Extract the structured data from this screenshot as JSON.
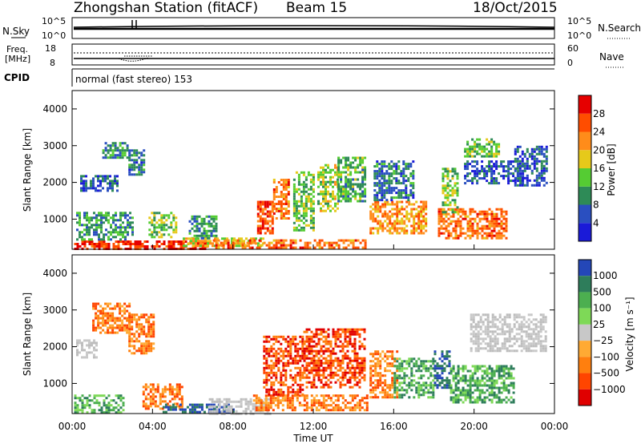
{
  "header": {
    "station": "Zhongshan Station (fitACF)",
    "beam": "Beam 15",
    "date": "18/Oct/2015"
  },
  "panels": {
    "nsky_label": "N.Sky",
    "nsearch_label": "N.Search",
    "noise_ticks": [
      "10^5",
      "10^0"
    ],
    "freq_label_line1": "Freq.",
    "freq_label_line2": "[MHz]",
    "freq_ticks": [
      "18",
      "8"
    ],
    "nave_label": "Nave",
    "nave_ticks": [
      "60",
      "0"
    ],
    "cpid_label": "CPID",
    "cpid_text": "normal (fast stereo) 153"
  },
  "colors": {
    "power": [
      "#1a1ad8",
      "#2a4fc0",
      "#2e8b57",
      "#55cc33",
      "#e6c91a",
      "#ff8c1a",
      "#ff4d00",
      "#e60000"
    ],
    "velocity": [
      "#2447b8",
      "#2e7d5b",
      "#4caf50",
      "#7ed957",
      "#c8c8c8",
      "#ffaa33",
      "#ff7f0e",
      "#ff4500",
      "#e00000"
    ],
    "ground_scatter": "#bdbdbd"
  },
  "chart_data": [
    {
      "type": "heatmap",
      "quantity": "Power",
      "ylabel": "Slant Range [km]",
      "xlabel": "Time UT",
      "x_ticks": [
        "00:00",
        "04:00",
        "08:00",
        "12:00",
        "16:00",
        "20:00",
        "00:00"
      ],
      "xlim_hours": [
        0,
        24
      ],
      "y_ticks": [
        1000,
        2000,
        3000,
        4000
      ],
      "ylim": [
        180,
        4500
      ],
      "colorbar_label": "Power [dB]",
      "colorbar_ticks": [
        4,
        8,
        12,
        16,
        20,
        24,
        28
      ],
      "colorbar_range": [
        0,
        32
      ],
      "regions": [
        {
          "t0": 0.1,
          "t1": 6.8,
          "r0": 200,
          "r1": 420,
          "level": 28
        },
        {
          "t0": 0.2,
          "t1": 3.0,
          "r0": 450,
          "r1": 1200,
          "level": 10
        },
        {
          "t0": 0.4,
          "t1": 2.2,
          "r0": 1800,
          "r1": 2200,
          "level": 6
        },
        {
          "t0": 1.5,
          "t1": 2.8,
          "r0": 2700,
          "r1": 3100,
          "level": 10
        },
        {
          "t0": 2.8,
          "t1": 3.6,
          "r0": 2200,
          "r1": 2900,
          "level": 8
        },
        {
          "t0": 3.8,
          "t1": 5.2,
          "r0": 500,
          "r1": 1200,
          "level": 14
        },
        {
          "t0": 5.8,
          "t1": 7.2,
          "r0": 450,
          "r1": 1100,
          "level": 10
        },
        {
          "t0": 5.5,
          "t1": 9.5,
          "r0": 300,
          "r1": 500,
          "level": 18
        },
        {
          "t0": 7.0,
          "t1": 14.6,
          "r0": 250,
          "r1": 450,
          "level": 24
        },
        {
          "t0": 9.2,
          "t1": 10.0,
          "r0": 600,
          "r1": 1500,
          "level": 26
        },
        {
          "t0": 10.0,
          "t1": 10.8,
          "r0": 1000,
          "r1": 2100,
          "level": 24
        },
        {
          "t0": 11.0,
          "t1": 12.0,
          "r0": 700,
          "r1": 2300,
          "level": 14
        },
        {
          "t0": 12.2,
          "t1": 13.2,
          "r0": 1200,
          "r1": 2500,
          "level": 16
        },
        {
          "t0": 13.2,
          "t1": 14.6,
          "r0": 1500,
          "r1": 2700,
          "level": 12
        },
        {
          "t0": 14.8,
          "t1": 17.6,
          "r0": 600,
          "r1": 1500,
          "level": 22
        },
        {
          "t0": 15.0,
          "t1": 17.0,
          "r0": 1500,
          "r1": 2600,
          "level": 8
        },
        {
          "t0": 18.2,
          "t1": 21.6,
          "r0": 500,
          "r1": 1300,
          "level": 24
        },
        {
          "t0": 18.4,
          "t1": 19.2,
          "r0": 1200,
          "r1": 2400,
          "level": 14
        },
        {
          "t0": 19.5,
          "t1": 22.4,
          "r0": 2000,
          "r1": 2600,
          "level": 6
        },
        {
          "t0": 19.5,
          "t1": 21.2,
          "r0": 2700,
          "r1": 3200,
          "level": 14
        },
        {
          "t0": 22.0,
          "t1": 23.6,
          "r0": 1900,
          "r1": 3000,
          "level": 6
        }
      ]
    },
    {
      "type": "heatmap",
      "quantity": "Velocity",
      "ylabel": "Slant Range [km]",
      "xlabel": "Time UT",
      "x_ticks": [
        "00:00",
        "04:00",
        "08:00",
        "12:00",
        "16:00",
        "20:00",
        "00:00"
      ],
      "xlim_hours": [
        0,
        24
      ],
      "y_ticks": [
        1000,
        2000,
        3000,
        4000
      ],
      "ylim": [
        180,
        4500
      ],
      "colorbar_label": "Velocity [m s⁻¹]",
      "colorbar_ticks": [
        "1000",
        "500",
        "100",
        "25",
        "−25",
        "−100",
        "−500",
        "−1000"
      ],
      "regions": [
        {
          "t0": 0.1,
          "t1": 2.5,
          "r0": 200,
          "r1": 700,
          "level": "green"
        },
        {
          "t0": 0.2,
          "t1": 1.2,
          "r0": 1700,
          "r1": 2200,
          "level": "grey"
        },
        {
          "t0": 1.0,
          "t1": 2.8,
          "r0": 2400,
          "r1": 3200,
          "level": "orange"
        },
        {
          "t0": 2.8,
          "t1": 4.0,
          "r0": 1800,
          "r1": 2900,
          "level": "orange"
        },
        {
          "t0": 3.5,
          "t1": 5.5,
          "r0": 300,
          "r1": 1000,
          "level": "orange"
        },
        {
          "t0": 4.5,
          "t1": 8.0,
          "r0": 200,
          "r1": 450,
          "level": "blue"
        },
        {
          "t0": 6.8,
          "t1": 9.8,
          "r0": 200,
          "r1": 600,
          "level": "grey"
        },
        {
          "t0": 9.0,
          "t1": 14.7,
          "r0": 250,
          "r1": 700,
          "level": "orange"
        },
        {
          "t0": 9.5,
          "t1": 11.5,
          "r0": 700,
          "r1": 2300,
          "level": "red"
        },
        {
          "t0": 11.5,
          "t1": 14.6,
          "r0": 900,
          "r1": 2500,
          "level": "red"
        },
        {
          "t0": 14.8,
          "t1": 16.2,
          "r0": 600,
          "r1": 1900,
          "level": "orange"
        },
        {
          "t0": 16.0,
          "t1": 18.0,
          "r0": 600,
          "r1": 1700,
          "level": "green"
        },
        {
          "t0": 18.0,
          "t1": 18.8,
          "r0": 900,
          "r1": 1900,
          "level": "blue"
        },
        {
          "t0": 18.8,
          "t1": 22.0,
          "r0": 500,
          "r1": 1500,
          "level": "green"
        },
        {
          "t0": 19.8,
          "t1": 23.6,
          "r0": 1900,
          "r1": 2900,
          "level": "grey"
        }
      ]
    }
  ]
}
